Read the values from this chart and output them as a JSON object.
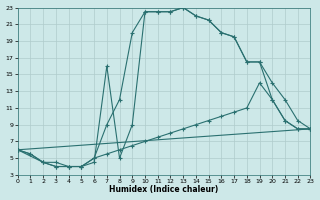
{
  "xlabel": "Humidex (Indice chaleur)",
  "xlim": [
    0,
    23
  ],
  "ylim": [
    3,
    23
  ],
  "xticks": [
    0,
    1,
    2,
    3,
    4,
    5,
    6,
    7,
    8,
    9,
    10,
    11,
    12,
    13,
    14,
    15,
    16,
    17,
    18,
    19,
    20,
    21,
    22,
    23
  ],
  "yticks": [
    3,
    5,
    7,
    9,
    11,
    13,
    15,
    17,
    19,
    21,
    23
  ],
  "bg_color": "#cde8e8",
  "line_color": "#2a7070",
  "grid_color": "#b0cccc",
  "curve1_x": [
    0,
    1,
    2,
    3,
    4,
    5,
    6,
    7,
    8,
    9,
    10,
    11,
    12,
    13,
    14,
    15,
    16,
    17,
    18,
    19,
    20,
    21,
    22,
    23
  ],
  "curve1_y": [
    6,
    5.5,
    4.5,
    4.5,
    4,
    4,
    5,
    9,
    12,
    20,
    22.5,
    22.5,
    22.5,
    23,
    22,
    21.5,
    20,
    19.5,
    16.5,
    16.5,
    12,
    9.5,
    8.5,
    8.5
  ],
  "curve2_x": [
    0,
    1,
    2,
    3,
    4,
    5,
    6,
    7,
    8,
    9,
    10,
    11,
    12,
    13,
    14,
    15,
    16,
    17,
    18,
    19,
    20,
    21,
    22,
    23
  ],
  "curve2_y": [
    6,
    5.5,
    4.5,
    4,
    4,
    4,
    4.5,
    16,
    5,
    9,
    22.5,
    22.5,
    22.5,
    23,
    22,
    21.5,
    20,
    19.5,
    16.5,
    16.5,
    14,
    12,
    9.5,
    8.5
  ],
  "curve3_x": [
    0,
    2,
    3,
    4,
    5,
    6,
    7,
    8,
    9,
    10,
    11,
    12,
    13,
    14,
    15,
    16,
    17,
    18,
    19,
    20,
    21,
    22,
    23
  ],
  "curve3_y": [
    6,
    4.5,
    4,
    4,
    4,
    5,
    5.5,
    6,
    6.5,
    7,
    7.5,
    8,
    8.5,
    9,
    9.5,
    10,
    10.5,
    11,
    14,
    12,
    9.5,
    8.5,
    8.5
  ],
  "line_x": [
    0,
    23
  ],
  "line_y": [
    6,
    8.5
  ]
}
